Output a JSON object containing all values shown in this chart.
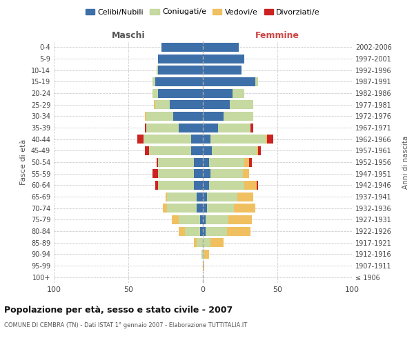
{
  "age_groups": [
    "100+",
    "95-99",
    "90-94",
    "85-89",
    "80-84",
    "75-79",
    "70-74",
    "65-69",
    "60-64",
    "55-59",
    "50-54",
    "45-49",
    "40-44",
    "35-39",
    "30-34",
    "25-29",
    "20-24",
    "15-19",
    "10-14",
    "5-9",
    "0-4"
  ],
  "birth_years": [
    "≤ 1906",
    "1907-1911",
    "1912-1916",
    "1917-1921",
    "1922-1926",
    "1927-1931",
    "1932-1936",
    "1937-1941",
    "1942-1946",
    "1947-1951",
    "1952-1956",
    "1957-1961",
    "1962-1966",
    "1967-1971",
    "1972-1976",
    "1977-1981",
    "1982-1986",
    "1987-1991",
    "1992-1996",
    "1997-2001",
    "2002-2006"
  ],
  "maschi": {
    "celibi": [
      0,
      0,
      0,
      0,
      2,
      2,
      4,
      4,
      6,
      6,
      6,
      8,
      8,
      16,
      20,
      22,
      30,
      32,
      30,
      30,
      28
    ],
    "coniugati": [
      0,
      0,
      1,
      4,
      10,
      14,
      20,
      20,
      24,
      24,
      24,
      28,
      32,
      22,
      18,
      10,
      4,
      2,
      1,
      0,
      0
    ],
    "vedovi": [
      0,
      0,
      0,
      2,
      4,
      5,
      3,
      1,
      0,
      0,
      0,
      0,
      0,
      0,
      1,
      1,
      0,
      0,
      0,
      0,
      0
    ],
    "divorziati": [
      0,
      0,
      0,
      0,
      0,
      0,
      0,
      0,
      2,
      4,
      1,
      3,
      4,
      1,
      0,
      0,
      0,
      0,
      0,
      0,
      0
    ]
  },
  "femmine": {
    "nubili": [
      0,
      0,
      0,
      0,
      2,
      2,
      3,
      3,
      4,
      5,
      4,
      6,
      5,
      10,
      14,
      18,
      20,
      35,
      26,
      28,
      24
    ],
    "coniugate": [
      0,
      0,
      1,
      5,
      14,
      15,
      18,
      20,
      24,
      22,
      24,
      30,
      37,
      22,
      20,
      16,
      8,
      2,
      0,
      0,
      0
    ],
    "vedove": [
      0,
      1,
      3,
      9,
      16,
      16,
      14,
      11,
      8,
      4,
      3,
      1,
      1,
      0,
      0,
      0,
      0,
      0,
      0,
      0,
      0
    ],
    "divorziate": [
      0,
      0,
      0,
      0,
      0,
      0,
      0,
      0,
      1,
      0,
      2,
      2,
      4,
      2,
      0,
      0,
      0,
      0,
      0,
      0,
      0
    ]
  },
  "colors": {
    "celibi": "#3d6fa8",
    "coniugati": "#c5d9a0",
    "vedovi": "#f0c060",
    "divorziati": "#cc2222"
  },
  "title": "Popolazione per età, sesso e stato civile - 2007",
  "subtitle": "COMUNE DI CEMBRA (TN) - Dati ISTAT 1° gennaio 2007 - Elaborazione TUTTITALIA.IT",
  "ylabel_left": "Fasce di età",
  "ylabel_right": "Anni di nascita",
  "xlim": 100,
  "legend_labels": [
    "Celibi/Nubili",
    "Coniugati/e",
    "Vedovi/e",
    "Divorziati/e"
  ],
  "maschi_label": "Maschi",
  "femmine_label": "Femmine",
  "bg_color": "#ffffff"
}
